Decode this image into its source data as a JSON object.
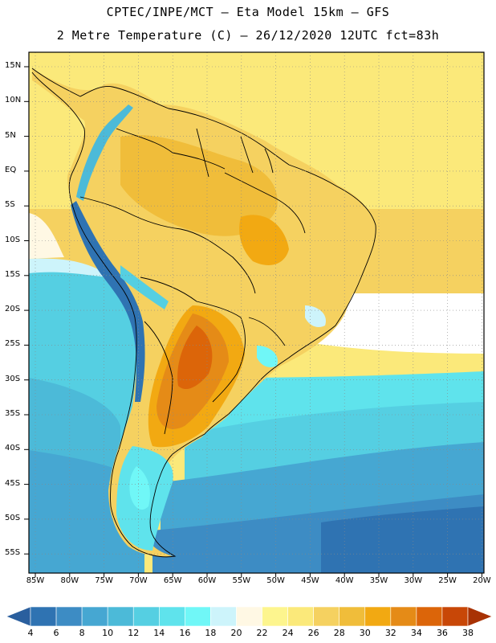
{
  "header": {
    "title_line1": "CPTEC/INPE/MCT –  Eta Model 15km – GFS",
    "title_line2": "2 Metre Temperature (C) – 26/12/2020 12UTC fct=83h"
  },
  "map": {
    "lat_labels": [
      "15N",
      "10N",
      "5N",
      "EQ",
      "5S",
      "10S",
      "15S",
      "20S",
      "25S",
      "30S",
      "35S",
      "40S",
      "45S",
      "50S",
      "55S"
    ],
    "lon_labels": [
      "85W",
      "80W",
      "75W",
      "70W",
      "65W",
      "60W",
      "55W",
      "50W",
      "45W",
      "40W",
      "35W",
      "30W",
      "25W",
      "20W"
    ]
  },
  "colorbar": {
    "labels": [
      "4",
      "6",
      "8",
      "10",
      "12",
      "14",
      "16",
      "18",
      "20",
      "22",
      "24",
      "26",
      "28",
      "30",
      "32",
      "34",
      "36",
      "38"
    ],
    "colors": [
      "#2a5f9e",
      "#2f73b2",
      "#3d8cc4",
      "#46a7d2",
      "#4cbad8",
      "#55cfe2",
      "#5fe3ec",
      "#70f7f7",
      "#cdf4fb",
      "#fff8e4",
      "#fdf58e",
      "#fbe97a",
      "#f5d160",
      "#f0bd3a",
      "#f2a912",
      "#e58b17",
      "#dc6509",
      "#c84707",
      "#a83204"
    ]
  }
}
